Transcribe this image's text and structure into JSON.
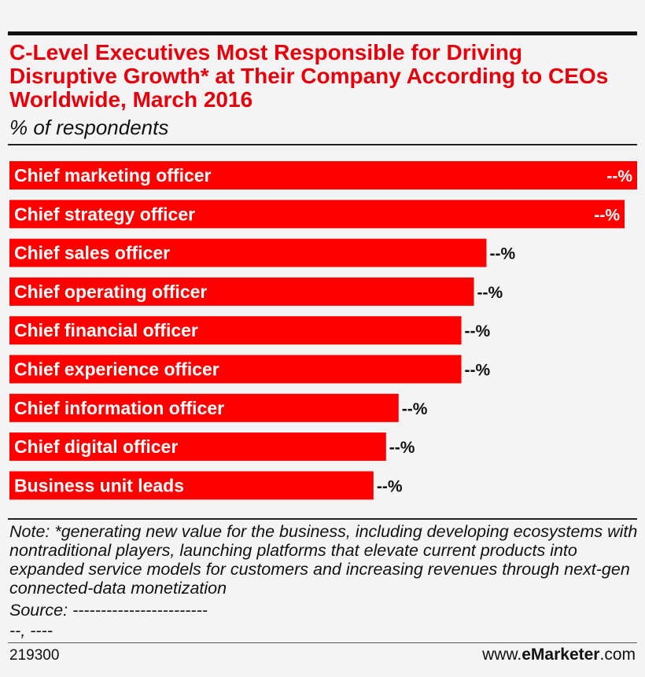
{
  "title": "C-Level Executives Most Responsible for Driving Disruptive Growth* at Their Company According to CEOs Worldwide, March 2016",
  "subtitle": "% of respondents",
  "note": "Note: *generating new value for the business, including developing ecosystems with nontraditional players, launching platforms that elevate current products into expanded service models for customers and increasing revenues through next-gen connected-data monetization",
  "source_line1": "Source: ------------------------",
  "source_line2": "--, ----",
  "footer": {
    "id": "219300",
    "site_prefix": "www.",
    "site_brand": "eMarketer",
    "site_suffix": ".com"
  },
  "colors": {
    "bar": "#ff0000",
    "title": "#e8000b",
    "rules": "#111111"
  },
  "chart_data": {
    "type": "bar",
    "orientation": "horizontal",
    "categories": [
      "Chief marketing officer",
      "Chief strategy officer",
      "Chief sales officer",
      "Chief operating officer",
      "Chief financial officer",
      "Chief experience officer",
      "Chief information officer",
      "Chief digital officer",
      "Business unit leads"
    ],
    "values": [
      100,
      98,
      76,
      74,
      72,
      72,
      62,
      60,
      58
    ],
    "value_labels": [
      "--%",
      "--%",
      "--%",
      "--%",
      "--%",
      "--%",
      "--%",
      "--%",
      "--%"
    ],
    "title": "C-Level Executives Most Responsible for Driving Disruptive Growth* at Their Company According to CEOs Worldwide, March 2016",
    "xlabel": "",
    "ylabel": "",
    "xlim": [
      0,
      100
    ],
    "grid": false,
    "legend": "none"
  }
}
